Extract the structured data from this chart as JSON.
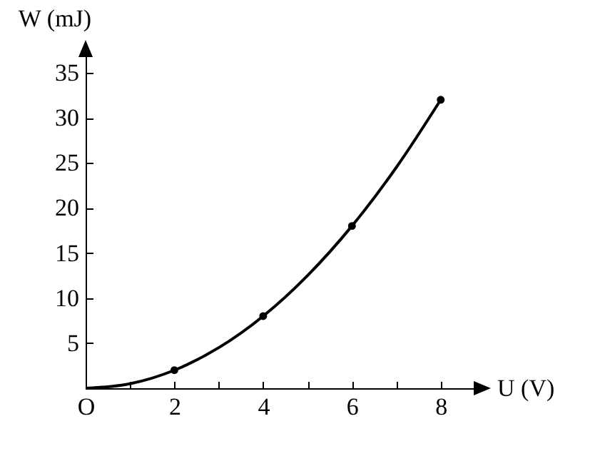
{
  "chart_data": {
    "type": "line",
    "xlabel": "U (V)",
    "ylabel": "W (mJ)",
    "xlim": [
      0,
      9
    ],
    "ylim": [
      0,
      38
    ],
    "xticks": [
      {
        "value": 0,
        "label": "O"
      },
      {
        "value": 1,
        "label": null
      },
      2,
      {
        "value": 3,
        "label": null
      },
      4,
      {
        "value": 5,
        "label": null
      },
      6,
      {
        "value": 7,
        "label": null
      },
      8
    ],
    "yticks": [
      5,
      10,
      15,
      20,
      25,
      30,
      35
    ],
    "grid": false,
    "series": [
      {
        "color": "#000000",
        "marker": "none",
        "x": [
          0,
          1,
          2,
          3,
          4,
          5,
          6,
          7,
          8
        ],
        "values": [
          0,
          0.5,
          2,
          4.5,
          8,
          12.5,
          18,
          24.5,
          32
        ]
      },
      {
        "type": "scatter",
        "color": "#000000",
        "marker": "circle",
        "x": [
          2,
          4,
          6,
          8
        ],
        "values": [
          2,
          8,
          18,
          32
        ]
      }
    ]
  }
}
